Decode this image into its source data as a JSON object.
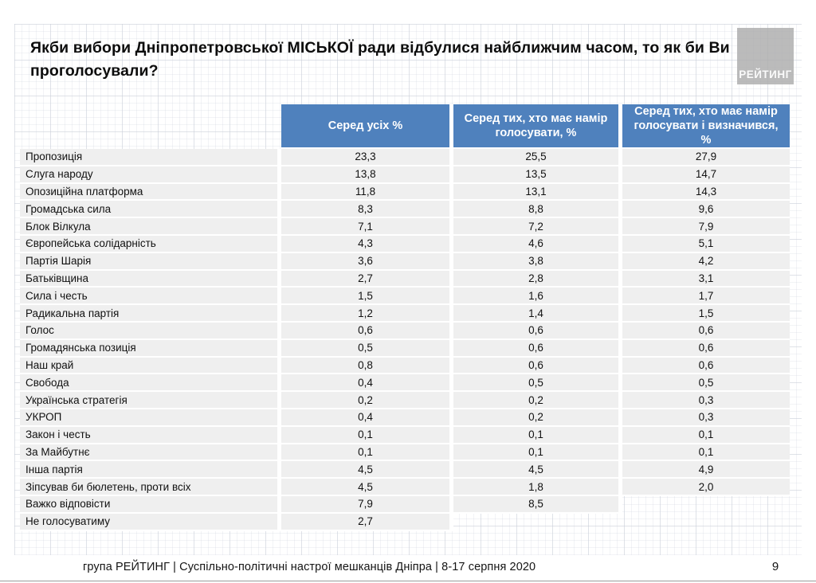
{
  "slide": {
    "title": "Якби вибори Дніпропетровської МІСЬКОЇ ради відбулися найближчим часом, то як би Ви проголосували?",
    "logo_text": "РЕЙТИНГ",
    "footer_text": "група РЕЙТИНГ  | Суспільно-політичні настрої мешканців Дніпра | 8-17 серпня 2020",
    "page_number": "9"
  },
  "colors": {
    "header_blue": "#4f81bd",
    "cell_gray": "#efefef",
    "logo_gray": "#acacac"
  },
  "table": {
    "columns": [
      "Серед усіх %",
      "Серед тих, хто має намір голосувати, %",
      "Серед тих, хто має намір голосувати і визначився, %"
    ],
    "rows": [
      {
        "label": "Пропозиція",
        "values": [
          "23,3",
          "25,5",
          "27,9"
        ]
      },
      {
        "label": "Слуга народу",
        "values": [
          "13,8",
          "13,5",
          "14,7"
        ]
      },
      {
        "label": "Опозиційна платформа",
        "values": [
          "11,8",
          "13,1",
          "14,3"
        ]
      },
      {
        "label": "Громадська сила",
        "values": [
          "8,3",
          "8,8",
          "9,6"
        ]
      },
      {
        "label": "Блок Вілкула",
        "values": [
          "7,1",
          "7,2",
          "7,9"
        ]
      },
      {
        "label": "Європейська солідарність",
        "values": [
          "4,3",
          "4,6",
          "5,1"
        ]
      },
      {
        "label": "Партія Шарія",
        "values": [
          "3,6",
          "3,8",
          "4,2"
        ]
      },
      {
        "label": "Батьківщина",
        "values": [
          "2,7",
          "2,8",
          "3,1"
        ]
      },
      {
        "label": "Сила і честь",
        "values": [
          "1,5",
          "1,6",
          "1,7"
        ]
      },
      {
        "label": "Радикальна партія",
        "values": [
          "1,2",
          "1,4",
          "1,5"
        ]
      },
      {
        "label": "Голос",
        "values": [
          "0,6",
          "0,6",
          "0,6"
        ]
      },
      {
        "label": "Громадянська позиція",
        "values": [
          "0,5",
          "0,6",
          "0,6"
        ]
      },
      {
        "label": "Наш край",
        "values": [
          "0,8",
          "0,6",
          "0,6"
        ]
      },
      {
        "label": "Свобода",
        "values": [
          "0,4",
          "0,5",
          "0,5"
        ]
      },
      {
        "label": "Українська стратегія",
        "values": [
          "0,2",
          "0,2",
          "0,3"
        ]
      },
      {
        "label": "УКРОП",
        "values": [
          "0,4",
          "0,2",
          "0,3"
        ]
      },
      {
        "label": "Закон і честь",
        "values": [
          "0,1",
          "0,1",
          "0,1"
        ]
      },
      {
        "label": "За Майбутнє",
        "values": [
          "0,1",
          "0,1",
          "0,1"
        ]
      },
      {
        "label": "Інша партія",
        "values": [
          "4,5",
          "4,5",
          "4,9"
        ]
      },
      {
        "label": "Зіпсував би бюлетень, проти всіх",
        "values": [
          "4,5",
          "1,8",
          "2,0"
        ]
      },
      {
        "label": "Важко відповісти",
        "values": [
          "7,9",
          "8,5",
          ""
        ]
      },
      {
        "label": "Не голосуватиму",
        "values": [
          "2,7",
          "",
          ""
        ]
      }
    ]
  },
  "chart_data": {
    "type": "table",
    "title": "Якби вибори Дніпропетровської МІСЬКОЇ ради відбулися найближчим часом, то як би Ви проголосували?",
    "categories": [
      "Пропозиція",
      "Слуга народу",
      "Опозиційна платформа",
      "Громадська сила",
      "Блок Вілкула",
      "Європейська солідарність",
      "Партія Шарія",
      "Батьківщина",
      "Сила і честь",
      "Радикальна партія",
      "Голос",
      "Громадянська позиція",
      "Наш край",
      "Свобода",
      "Українська стратегія",
      "УКРОП",
      "Закон і честь",
      "За Майбутнє",
      "Інша партія",
      "Зіпсував би бюлетень, проти всіх",
      "Важко відповісти",
      "Не голосуватиму"
    ],
    "series": [
      {
        "name": "Серед усіх %",
        "values": [
          23.3,
          13.8,
          11.8,
          8.3,
          7.1,
          4.3,
          3.6,
          2.7,
          1.5,
          1.2,
          0.6,
          0.5,
          0.8,
          0.4,
          0.2,
          0.4,
          0.1,
          0.1,
          4.5,
          4.5,
          7.9,
          2.7
        ]
      },
      {
        "name": "Серед тих, хто має намір голосувати, %",
        "values": [
          25.5,
          13.5,
          13.1,
          8.8,
          7.2,
          4.6,
          3.8,
          2.8,
          1.6,
          1.4,
          0.6,
          0.6,
          0.6,
          0.5,
          0.2,
          0.2,
          0.1,
          0.1,
          4.5,
          1.8,
          8.5,
          null
        ]
      },
      {
        "name": "Серед тих, хто має намір голосувати і визначився, %",
        "values": [
          27.9,
          14.7,
          14.3,
          9.6,
          7.9,
          5.1,
          4.2,
          3.1,
          1.7,
          1.5,
          0.6,
          0.6,
          0.6,
          0.5,
          0.3,
          0.3,
          0.1,
          0.1,
          4.9,
          2.0,
          null,
          null
        ]
      }
    ]
  }
}
